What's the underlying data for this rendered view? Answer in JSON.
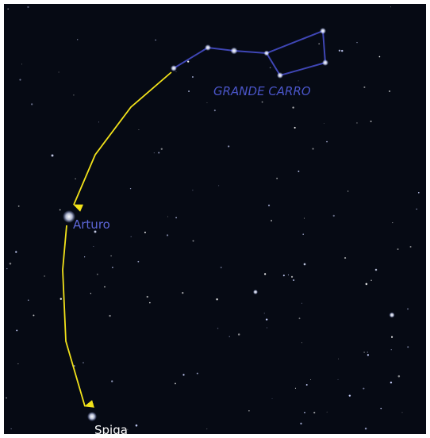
{
  "constellation": {
    "name": "GRANDE CARRO"
  },
  "stars": [
    {
      "name": "Arturo"
    },
    {
      "name": "Spiga"
    }
  ]
}
